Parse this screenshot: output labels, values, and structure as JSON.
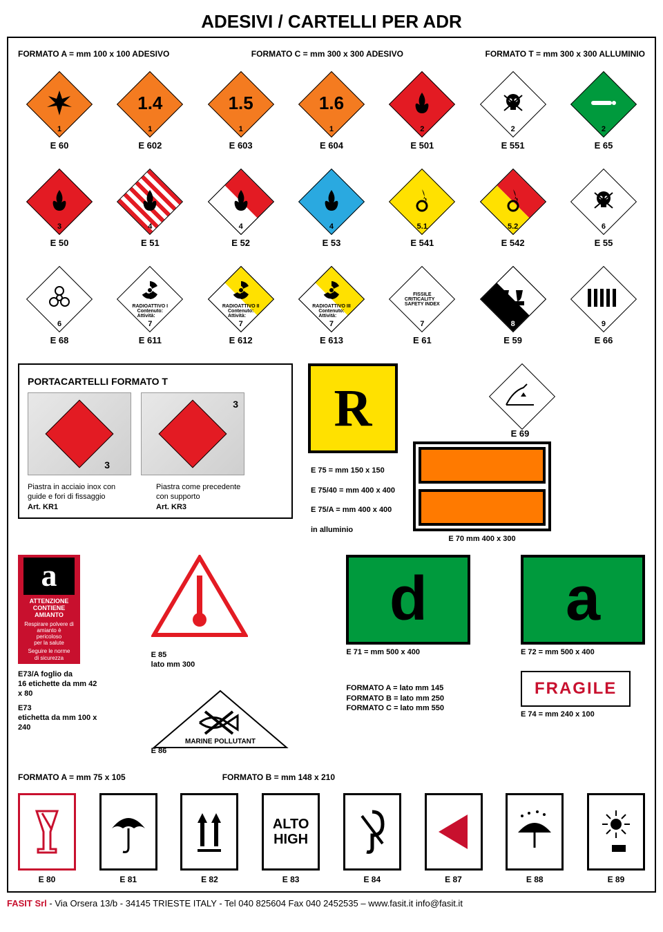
{
  "title": "ADESIVI / CARTELLI PER ADR",
  "formats_top": {
    "a": "FORMATO A = mm 100 x 100 ADESIVO",
    "c": "FORMATO C = mm 300 x 300 ADESIVO",
    "t": "FORMATO T = mm 300 x 300 ALLUMINIO"
  },
  "row1": [
    {
      "code": "E 60",
      "bg": "#f47b20",
      "num": "1",
      "big": "",
      "icon": "explosion"
    },
    {
      "code": "E 602",
      "bg": "#f47b20",
      "num": "1",
      "big": "1.4",
      "icon": ""
    },
    {
      "code": "E 603",
      "bg": "#f47b20",
      "num": "1",
      "big": "1.5",
      "icon": ""
    },
    {
      "code": "E 604",
      "bg": "#f47b20",
      "num": "1",
      "big": "1.6",
      "icon": ""
    },
    {
      "code": "E 501",
      "bg": "#e31b23",
      "num": "2",
      "big": "",
      "icon": "flame",
      "fg": "#000"
    },
    {
      "code": "E 551",
      "bg": "#ffffff",
      "num": "2",
      "big": "",
      "icon": "skull",
      "fg": "#000"
    },
    {
      "code": "E 65",
      "bg": "#009a3d",
      "num": "2",
      "big": "",
      "icon": "cylinder",
      "fg": "#fff"
    }
  ],
  "row2": [
    {
      "code": "E 50",
      "bg": "#e31b23",
      "num": "3",
      "icon": "flame",
      "fg": "#000"
    },
    {
      "code": "E 51",
      "bg": "#ffffff",
      "num": "4",
      "icon": "flame",
      "stripes": true,
      "fg": "#000"
    },
    {
      "code": "E 52",
      "top": "#e31b23",
      "bot": "#ffffff",
      "num": "4",
      "icon": "flame",
      "fg": "#000"
    },
    {
      "code": "E 53",
      "bg": "#2aa9e0",
      "num": "4",
      "icon": "flame",
      "fg": "#000"
    },
    {
      "code": "E 541",
      "bg": "#ffe100",
      "num": "5.1",
      "icon": "flame-ring",
      "fg": "#000"
    },
    {
      "code": "E 542",
      "top": "#e31b23",
      "bot": "#ffe100",
      "num": "5.2",
      "icon": "flame-ring",
      "fg": "#000"
    },
    {
      "code": "E 55",
      "bg": "#ffffff",
      "num": "6",
      "icon": "skull",
      "fg": "#000"
    }
  ],
  "row3": [
    {
      "code": "E 68",
      "bg": "#ffffff",
      "num": "6",
      "icon": "biohazard"
    },
    {
      "code": "E 611",
      "bg": "#ffffff",
      "num": "7",
      "icon": "trefoil",
      "label": "RADIOATTIVO I",
      "sub": "Contenuto:\nAttività:"
    },
    {
      "code": "E 612",
      "top": "#ffe100",
      "bot": "#ffffff",
      "num": "7",
      "icon": "trefoil",
      "label": "RADIOATTIVO II",
      "sub": "Contenuto:\nAttività:"
    },
    {
      "code": "E 613",
      "top": "#ffe100",
      "bot": "#ffffff",
      "num": "7",
      "icon": "trefoil",
      "label": "RADIOATTIVO III",
      "sub": "Contenuto:\nAttività:"
    },
    {
      "code": "E 61",
      "bg": "#ffffff",
      "num": "7",
      "label": "FISSILE",
      "sub": "CRITICALITY\nSAFETY INDEX"
    },
    {
      "code": "E 59",
      "top": "#ffffff",
      "bot": "#000000",
      "num": "8",
      "icon": "corrosive",
      "numcolor": "#fff"
    },
    {
      "code": "E 66",
      "bg": "#ffffff",
      "num": "9",
      "icon": "stripes-top"
    }
  ],
  "porta": {
    "heading": "PORTACARTELLI FORMATO T",
    "kr1_desc": "Piastra in acciaio inox con\nguide e fori di fissaggio",
    "kr1_art": "Art. KR1",
    "kr3_desc": "Piastra come precedente\ncon supporto",
    "kr3_art": "Art. KR3",
    "photo_num": "3"
  },
  "e69": {
    "code": "E 69"
  },
  "e75": {
    "l1": "E 75       = mm 150 x 150",
    "l2": "E 75/40  = mm 400 x 400",
    "l3": "E 75/A   = mm 400 x 400",
    "l4": "               in alluminio"
  },
  "e70": "E 70 mm 400 x 300",
  "amianto": {
    "letter": "a",
    "t1": "ATTENZIONE\nCONTIENE\nAMIANTO",
    "t2": "Respirare polvere di\namianto è\npericoloso\nper la salute",
    "t3": "Seguire le norme\ndi sicurezza"
  },
  "e73a": "E73/A foglio da\n16 etichette da mm 42 x 80",
  "e73": "E73\netichetta da mm 100 x 240",
  "e85": {
    "code": "E 85",
    "size": "lato mm 300"
  },
  "e86": {
    "code": "E 86",
    "label": "MARINE POLLUTANT"
  },
  "e71": "E 71 = mm 500 x 400",
  "e72": "E 72 = mm 500 x 400",
  "green_d": "d",
  "green_a": "a",
  "fmt_abc": {
    "a": "FORMATO A  =  lato mm 145",
    "b": "FORMATO B  =  lato mm 250",
    "c": "FORMATO C  =  lato mm 550"
  },
  "fragile": {
    "text": "FRAGILE",
    "code": "E 74 = mm 240 x 100"
  },
  "fmt_a2": "FORMATO A  =  mm   75 x 105",
  "fmt_b2": "FORMATO B  =  mm 148 x 210",
  "bottom": [
    {
      "code": "E 80",
      "icon": "glass",
      "color": "#c8102e"
    },
    {
      "code": "E 81",
      "icon": "umbrella",
      "color": "#000"
    },
    {
      "code": "E 82",
      "icon": "arrows-up",
      "color": "#000"
    },
    {
      "code": "E 83",
      "icon": "alto",
      "color": "#000"
    },
    {
      "code": "E 84",
      "icon": "hook",
      "color": "#000"
    },
    {
      "code": "E 87",
      "icon": "tri-left",
      "color": "#c8102e"
    },
    {
      "code": "E 88",
      "icon": "umbrella-rain",
      "color": "#000"
    },
    {
      "code": "E 89",
      "icon": "sun",
      "color": "#000"
    }
  ],
  "alto_text": "ALTO\nHIGH",
  "footer": {
    "red": "FASIT Srl",
    "rest": " - Via Orsera 13/b - 34145 TRIESTE  ITALY - Tel 040 825604  Fax 040 2452535 – www.fasit.it  info@fasit.it"
  },
  "colors": {
    "orange": "#f47b20",
    "red": "#e31b23",
    "green": "#009a3d",
    "yellow": "#ffe100",
    "blue": "#2aa9e0",
    "brand": "#c8102e"
  }
}
